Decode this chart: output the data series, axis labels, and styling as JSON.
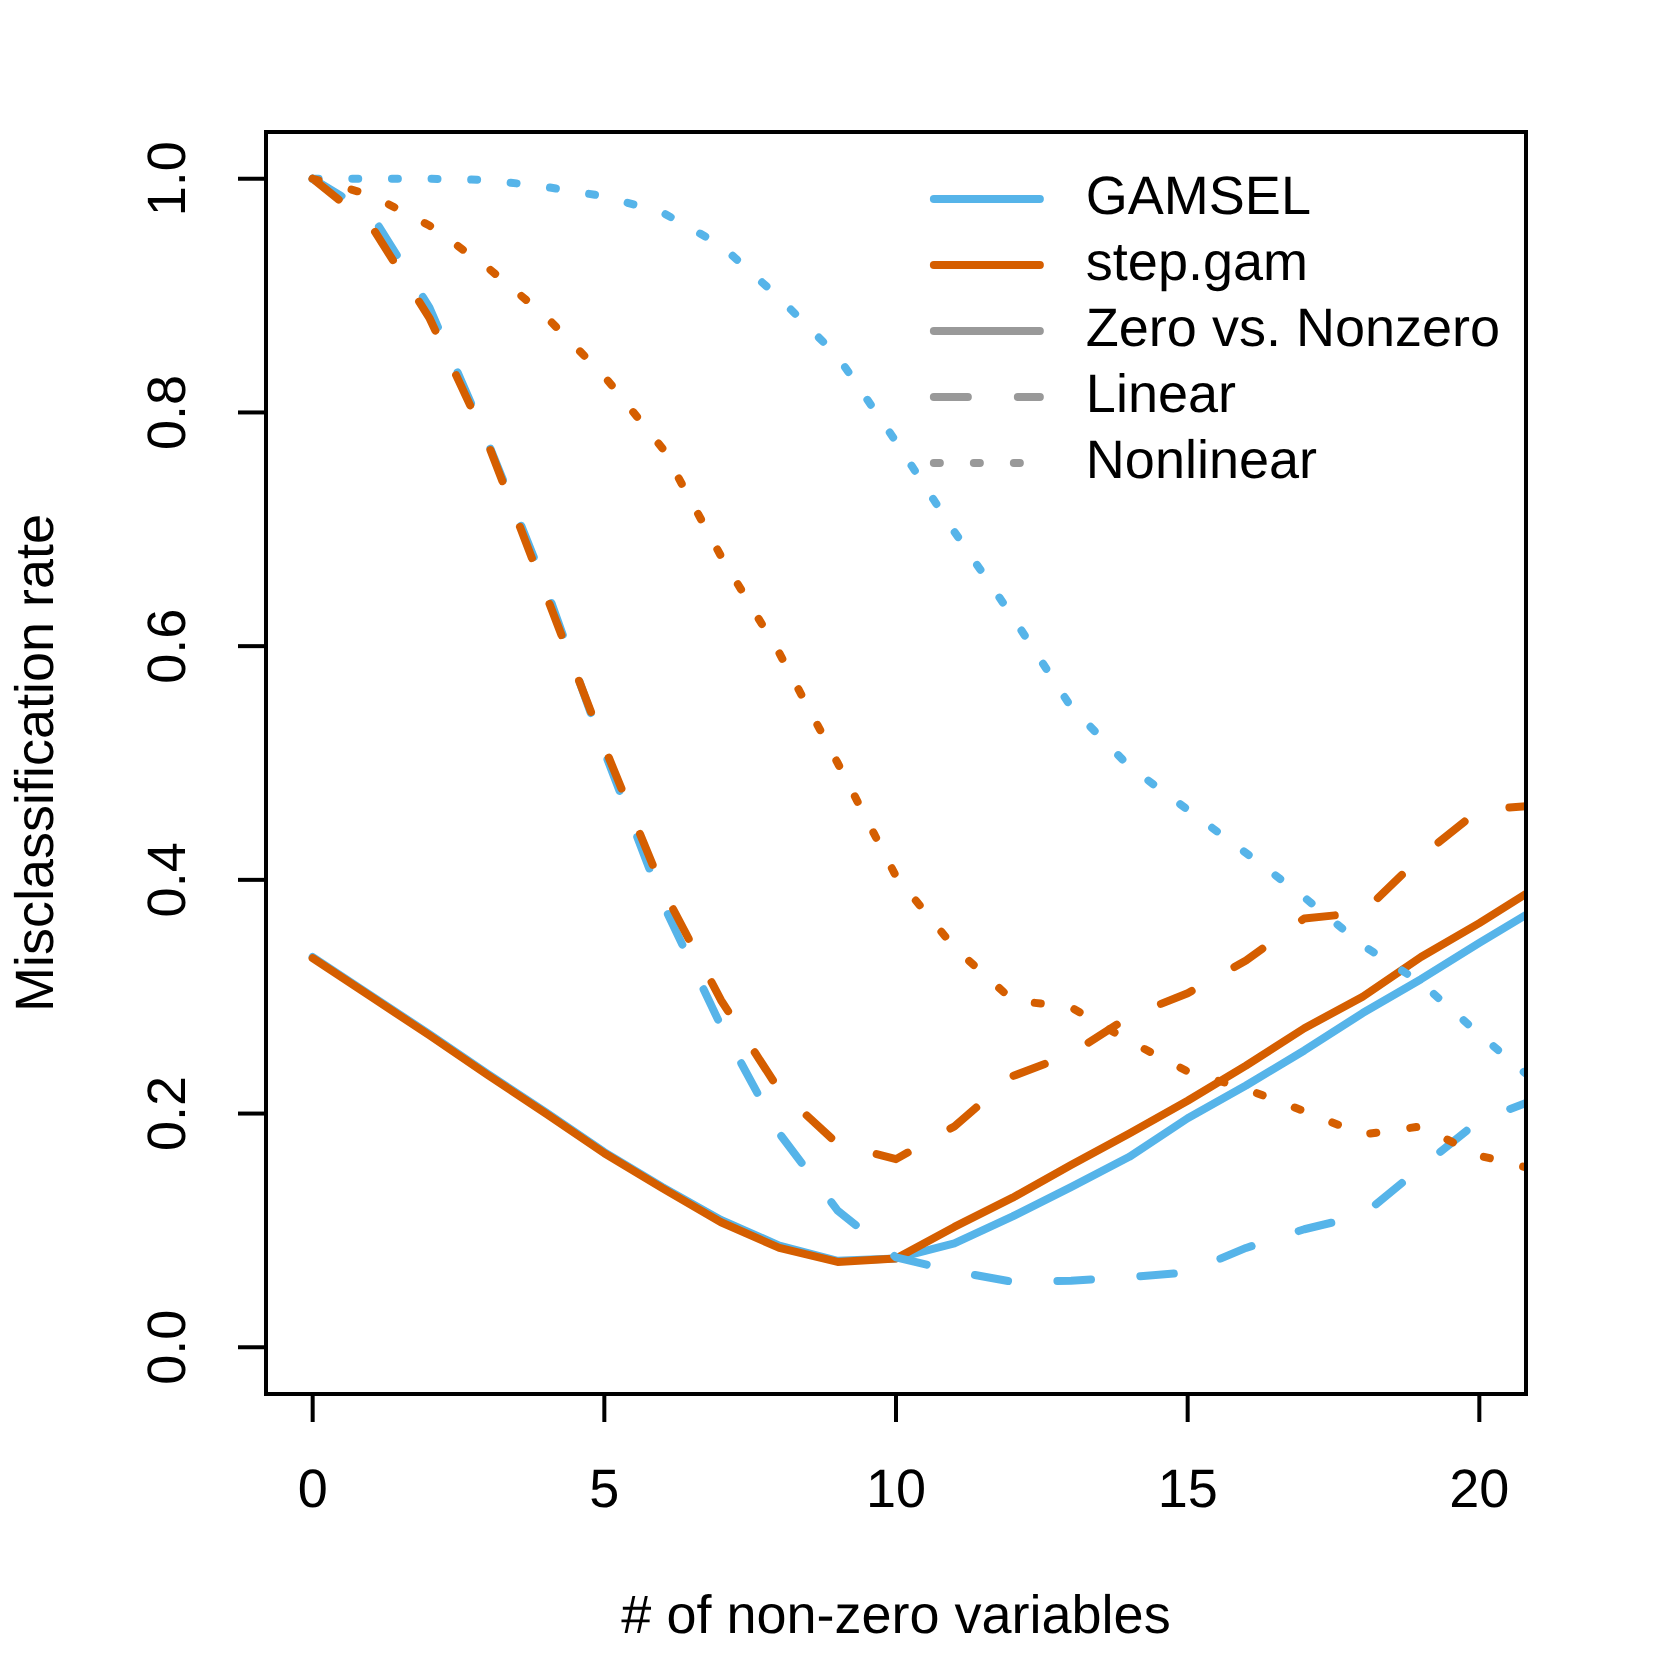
{
  "chart_data": {
    "type": "line",
    "xlabel": "# of non-zero variables",
    "ylabel": "Misclassification rate",
    "x": [
      0,
      1,
      2,
      3,
      4,
      5,
      6,
      7,
      8,
      9,
      10,
      11,
      12,
      13,
      14,
      15,
      16,
      17,
      18,
      19,
      20,
      20.8
    ],
    "xlim": [
      -0.8,
      20.8
    ],
    "xticks": [
      0,
      5,
      10,
      15,
      20
    ],
    "ylim": [
      -0.04,
      1.04
    ],
    "yticks": [
      {
        "value": 0,
        "label": "0.0"
      },
      {
        "value": 0.2,
        "label": "0.2"
      },
      {
        "value": 0.4,
        "label": "0.4"
      },
      {
        "value": 0.6,
        "label": "0.6"
      },
      {
        "value": 0.8,
        "label": "0.8"
      },
      {
        "value": 1,
        "label": "1.0"
      }
    ],
    "legend": "top right",
    "series": [
      {
        "color": "#56b4e9",
        "line_style": "solid",
        "values": [
          0.334,
          0.301,
          0.268,
          0.234,
          0.201,
          0.167,
          0.137,
          0.109,
          0.087,
          0.074,
          0.076,
          0.089,
          0.112,
          0.137,
          0.163,
          0.196,
          0.224,
          0.254,
          0.286,
          0.315,
          0.346,
          0.37
        ]
      },
      {
        "color": "#d55e00",
        "line_style": "solid",
        "values": [
          0.333,
          0.3,
          0.267,
          0.233,
          0.2,
          0.166,
          0.136,
          0.107,
          0.085,
          0.073,
          0.076,
          0.103,
          0.128,
          0.156,
          0.183,
          0.211,
          0.241,
          0.273,
          0.3,
          0.334,
          0.363,
          0.388
        ]
      },
      {
        "color": "#56b4e9",
        "line_style": "dashed",
        "values": [
          1.0,
          0.97,
          0.89,
          0.775,
          0.65,
          0.51,
          0.38,
          0.275,
          0.183,
          0.117,
          0.077,
          0.065,
          0.056,
          0.057,
          0.06,
          0.064,
          0.085,
          0.101,
          0.113,
          0.154,
          0.194,
          0.209
        ]
      },
      {
        "color": "#d55e00",
        "line_style": "dashed",
        "values": [
          1.0,
          0.96,
          0.881,
          0.774,
          0.644,
          0.514,
          0.392,
          0.297,
          0.22,
          0.174,
          0.161,
          0.189,
          0.232,
          0.251,
          0.283,
          0.303,
          0.331,
          0.367,
          0.372,
          0.42,
          0.46,
          0.463
        ]
      },
      {
        "color": "#56b4e9",
        "line_style": "dotted",
        "values": [
          1.0,
          1.0,
          1.0,
          0.999,
          0.993,
          0.985,
          0.971,
          0.943,
          0.898,
          0.848,
          0.775,
          0.698,
          0.625,
          0.548,
          0.497,
          0.46,
          0.423,
          0.385,
          0.344,
          0.312,
          0.268,
          0.234
        ]
      },
      {
        "color": "#d55e00",
        "line_style": "dotted",
        "values": [
          1.0,
          0.986,
          0.96,
          0.924,
          0.882,
          0.831,
          0.769,
          0.677,
          0.594,
          0.5,
          0.403,
          0.342,
          0.297,
          0.291,
          0.262,
          0.236,
          0.221,
          0.202,
          0.182,
          0.189,
          0.164,
          0.154
        ]
      },
      {
        "name": "GAMSEL",
        "color": "#56b4e9",
        "line_style": "solid",
        "values": [
          null,
          null,
          null,
          null,
          null,
          null,
          null,
          null,
          null,
          null,
          null,
          null,
          null,
          null,
          null,
          null,
          null,
          null,
          null,
          null,
          null,
          null
        ]
      },
      {
        "name": "step.gam",
        "color": "#d55e00",
        "line_style": "solid",
        "values": [
          null,
          null,
          null,
          null,
          null,
          null,
          null,
          null,
          null,
          null,
          null,
          null,
          null,
          null,
          null,
          null,
          null,
          null,
          null,
          null,
          null,
          null
        ]
      },
      {
        "name": "Zero vs. Nonzero",
        "color": "#999999",
        "line_style": "solid",
        "values": [
          null,
          null,
          null,
          null,
          null,
          null,
          null,
          null,
          null,
          null,
          null,
          null,
          null,
          null,
          null,
          null,
          null,
          null,
          null,
          null,
          null,
          null
        ]
      },
      {
        "name": "Linear",
        "color": "#999999",
        "line_style": "dashed",
        "values": [
          null,
          null,
          null,
          null,
          null,
          null,
          null,
          null,
          null,
          null,
          null,
          null,
          null,
          null,
          null,
          null,
          null,
          null,
          null,
          null,
          null,
          null
        ]
      },
      {
        "name": "Nonlinear",
        "color": "#999999",
        "line_style": "dotted",
        "values": [
          null,
          null,
          null,
          null,
          null,
          null,
          null,
          null,
          null,
          null,
          null,
          null,
          null,
          null,
          null,
          null,
          null,
          null,
          null,
          null,
          null,
          null
        ]
      }
    ]
  }
}
